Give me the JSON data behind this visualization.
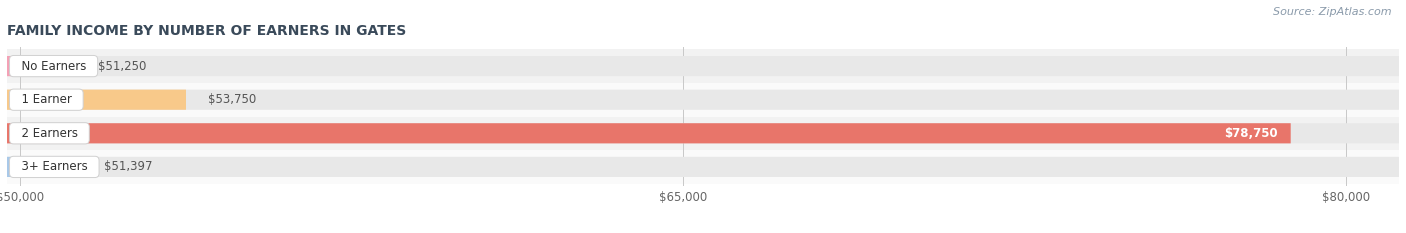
{
  "title": "FAMILY INCOME BY NUMBER OF EARNERS IN GATES",
  "source": "Source: ZipAtlas.com",
  "categories": [
    "No Earners",
    "1 Earner",
    "2 Earners",
    "3+ Earners"
  ],
  "values": [
    51250,
    53750,
    78750,
    51397
  ],
  "labels": [
    "$51,250",
    "$53,750",
    "$78,750",
    "$51,397"
  ],
  "bar_colors": [
    "#f4a0b5",
    "#f8c98a",
    "#e8756a",
    "#a8c8e8"
  ],
  "bar_bg_color": "#e8e8e8",
  "background_color": "#ffffff",
  "xmin": 49700,
  "xmax": 81200,
  "xticks": [
    50000,
    65000,
    80000
  ],
  "xtick_labels": [
    "$50,000",
    "$65,000",
    "$80,000"
  ],
  "title_color": "#3a4a5a",
  "label_color_inside": "#ffffff",
  "label_color_outside": "#555555",
  "source_color": "#8a9aaa",
  "bar_height": 0.6,
  "row_bg_colors": [
    "#f2f2f2",
    "#fafafa"
  ]
}
